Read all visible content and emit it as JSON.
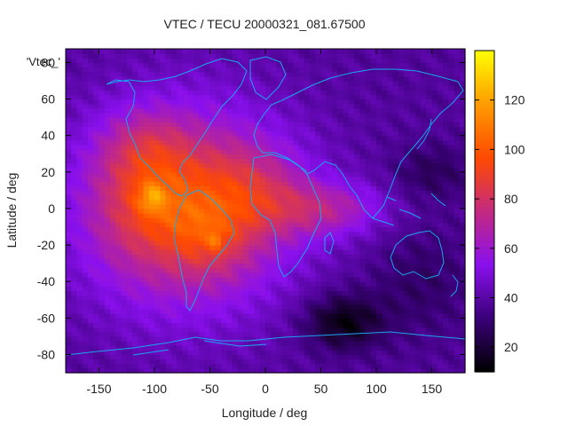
{
  "chart_data": {
    "type": "heatmap",
    "title": "VTEC / TECU 20000321_081.67500",
    "series_label": "'Vtec_'",
    "xlabel": "Longitude / deg",
    "ylabel": "Latitude / deg",
    "xlim": [
      -180,
      180
    ],
    "ylim": [
      -90,
      87.5
    ],
    "x_ticks": [
      -150,
      -100,
      -50,
      0,
      50,
      100,
      150
    ],
    "y_ticks": [
      -80,
      -60,
      -40,
      -20,
      0,
      20,
      40,
      60,
      80
    ],
    "colorbar": {
      "range": [
        10,
        140
      ],
      "ticks": [
        20,
        40,
        60,
        80,
        100,
        120
      ],
      "palette": [
        "#000000",
        "#3a0078",
        "#8a10ee",
        "#c42a80",
        "#ff4a00",
        "#ff9b00",
        "#ffff00"
      ]
    },
    "grid": {
      "lon_step": 5,
      "lat_step": 2.5
    },
    "background_tecu": 38,
    "anomalies": [
      {
        "lon": -72,
        "lat": 0,
        "dlon": 95,
        "dlat": 55,
        "amp": 45
      },
      {
        "lon": -105,
        "lat": 5,
        "dlon": 45,
        "dlat": 30,
        "amp": 20
      },
      {
        "lon": -102,
        "lat": 6,
        "dlon": 12,
        "dlat": 8,
        "amp": 22
      },
      {
        "lon": -50,
        "lat": -16,
        "dlon": 35,
        "dlat": 20,
        "amp": 15
      },
      {
        "lon": -45,
        "lat": -17,
        "dlon": 6,
        "dlat": 5,
        "amp": 15
      },
      {
        "lon": -15,
        "lat": 10,
        "dlon": 50,
        "dlat": 25,
        "amp": 20
      },
      {
        "lon": 55,
        "lat": 0,
        "dlon": 55,
        "dlat": 15,
        "amp": 25
      },
      {
        "lon": -110,
        "lat": 35,
        "dlon": 40,
        "dlat": 20,
        "amp": 15
      },
      {
        "lon": 70,
        "lat": -62,
        "dlon": 35,
        "dlat": 15,
        "amp": -26
      },
      {
        "lon": 140,
        "lat": -40,
        "dlon": 45,
        "dlat": 30,
        "amp": -10
      },
      {
        "lon": 150,
        "lat": 20,
        "dlon": 35,
        "dlat": 15,
        "amp": -12
      }
    ]
  }
}
